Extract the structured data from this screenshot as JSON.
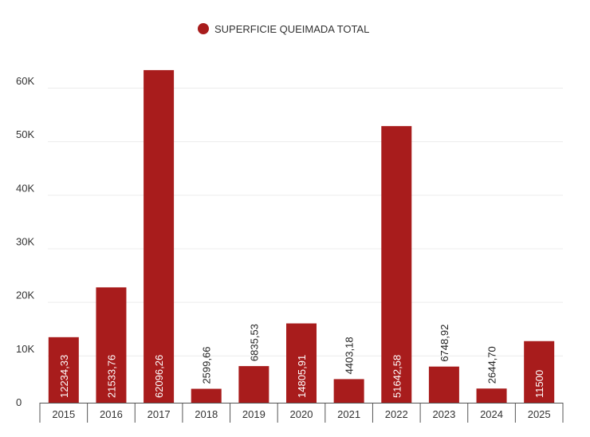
{
  "chart_data": {
    "type": "bar",
    "title": "",
    "legend": {
      "position": "top-center",
      "entries": [
        "SUPERFICIE QUEIMADA TOTAL"
      ]
    },
    "series": [
      {
        "name": "SUPERFICIE QUEIMADA TOTAL",
        "color": "#a81c1c"
      }
    ],
    "categories": [
      "2015",
      "2016",
      "2017",
      "2018",
      "2019",
      "2020",
      "2021",
      "2022",
      "2023",
      "2024",
      "2025"
    ],
    "values": [
      12234.33,
      21533.76,
      62096.26,
      2599.66,
      6835.53,
      14805.91,
      4403.18,
      51642.58,
      6748.92,
      2644.7,
      11500
    ],
    "value_labels": [
      "12234,33",
      "21533,76",
      "62096,26",
      "2599,66",
      "6835,53",
      "14805,91",
      "4403,18",
      "51642,58",
      "6748,92",
      "2644,70",
      "11500"
    ],
    "yticks": [
      0,
      10000,
      20000,
      30000,
      40000,
      50000,
      60000
    ],
    "ytick_labels": [
      "0",
      "10K",
      "20K",
      "30K",
      "40K",
      "50K",
      "60K"
    ],
    "ylim": [
      0,
      60000
    ],
    "xlabel": "",
    "ylabel": "",
    "grid": true
  }
}
